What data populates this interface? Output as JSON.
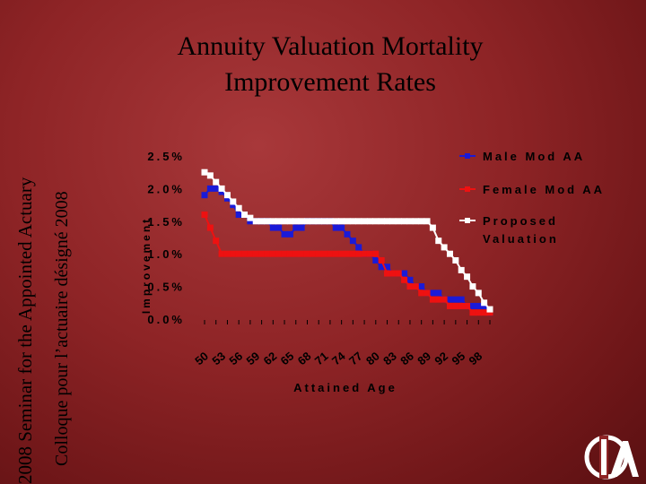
{
  "side_text": {
    "line1": "2008 Seminar for the Appointed Actuary",
    "line2": "Colloque pour l’actuaire désigné 2008"
  },
  "title": {
    "line1": "Annuity Valuation Mortality",
    "line2": "Improvement Rates"
  },
  "colors": {
    "male": "#1a1ad8",
    "female": "#ee1111",
    "proposed": "#ffffff"
  },
  "chart_data": {
    "type": "line",
    "xlabel": "Attained Age",
    "ylabel": "Improvement",
    "ylim": [
      0,
      2.5
    ],
    "yticks": [
      "0.0%",
      "0.5%",
      "1.0%",
      "1.5%",
      "2.0%",
      "2.5%"
    ],
    "xtick_labels": [
      "50",
      "53",
      "56",
      "59",
      "62",
      "65",
      "68",
      "71",
      "74",
      "77",
      "80",
      "83",
      "86",
      "89",
      "92",
      "95",
      "98"
    ],
    "x": [
      50,
      51,
      52,
      53,
      54,
      55,
      56,
      57,
      58,
      59,
      60,
      61,
      62,
      63,
      64,
      65,
      66,
      67,
      68,
      69,
      70,
      71,
      72,
      73,
      74,
      75,
      76,
      77,
      78,
      79,
      80,
      81,
      82,
      83,
      84,
      85,
      86,
      87,
      88,
      89,
      90,
      91,
      92,
      93,
      94,
      95,
      96,
      97,
      98,
      99,
      100
    ],
    "legend_position": "right",
    "grid": false,
    "series": [
      {
        "name": "Male Mod AA",
        "color": "#1a1ad8",
        "values": [
          1.9,
          2.0,
          2.0,
          1.95,
          1.85,
          1.75,
          1.6,
          1.6,
          1.5,
          1.5,
          1.5,
          1.5,
          1.4,
          1.4,
          1.3,
          1.3,
          1.4,
          1.4,
          1.5,
          1.5,
          1.5,
          1.5,
          1.5,
          1.4,
          1.4,
          1.3,
          1.2,
          1.1,
          1.0,
          1.0,
          0.9,
          0.8,
          0.8,
          0.7,
          0.7,
          0.7,
          0.6,
          0.5,
          0.5,
          0.4,
          0.4,
          0.4,
          0.3,
          0.3,
          0.3,
          0.3,
          0.2,
          0.2,
          0.2,
          0.2,
          0.1
        ]
      },
      {
        "name": "Female Mod AA",
        "color": "#ee1111",
        "values": [
          1.6,
          1.4,
          1.2,
          1.0,
          1.0,
          1.0,
          1.0,
          1.0,
          1.0,
          1.0,
          1.0,
          1.0,
          1.0,
          1.0,
          1.0,
          1.0,
          1.0,
          1.0,
          1.0,
          1.0,
          1.0,
          1.0,
          1.0,
          1.0,
          1.0,
          1.0,
          1.0,
          1.0,
          1.0,
          1.0,
          1.0,
          0.9,
          0.7,
          0.7,
          0.7,
          0.6,
          0.5,
          0.5,
          0.4,
          0.4,
          0.3,
          0.3,
          0.3,
          0.2,
          0.2,
          0.2,
          0.2,
          0.1,
          0.1,
          0.1,
          0.1
        ]
      },
      {
        "name": "Proposed Valuation",
        "color": "#ffffff",
        "values": [
          2.25,
          2.2,
          2.1,
          2.0,
          1.9,
          1.8,
          1.7,
          1.6,
          1.55,
          1.5,
          1.5,
          1.5,
          1.5,
          1.5,
          1.5,
          1.5,
          1.5,
          1.5,
          1.5,
          1.5,
          1.5,
          1.5,
          1.5,
          1.5,
          1.5,
          1.5,
          1.5,
          1.5,
          1.5,
          1.5,
          1.5,
          1.5,
          1.5,
          1.5,
          1.5,
          1.5,
          1.5,
          1.5,
          1.5,
          1.5,
          1.4,
          1.2,
          1.1,
          1.0,
          0.9,
          0.75,
          0.65,
          0.5,
          0.4,
          0.25,
          0.15
        ]
      }
    ]
  }
}
